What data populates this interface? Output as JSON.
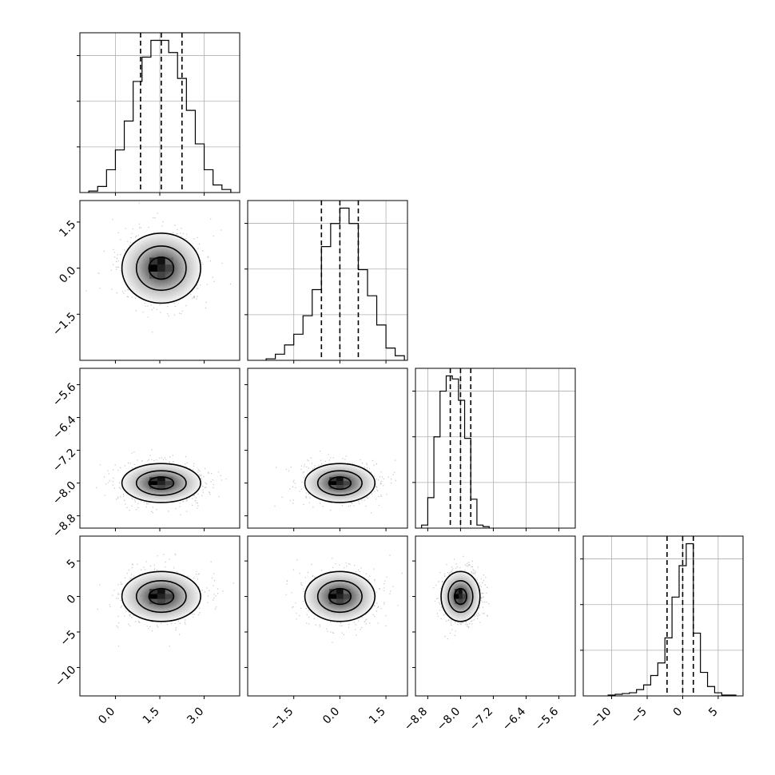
{
  "chart_data": {
    "type": "corner",
    "params": [
      {
        "range": [
          -1.2,
          4.2
        ],
        "ticks": [
          0.0,
          1.5,
          3.0
        ],
        "tick_labels": [
          "0.0",
          "1.5",
          "3.0"
        ],
        "quantiles": [
          0.85,
          1.55,
          2.25
        ],
        "hist": {
          "edges": [
            -0.9,
            -0.6,
            -0.3,
            0.0,
            0.3,
            0.6,
            0.9,
            1.2,
            1.5,
            1.8,
            2.1,
            2.4,
            2.7,
            3.0,
            3.3,
            3.6,
            3.9
          ],
          "counts": [
            0.01,
            0.04,
            0.15,
            0.28,
            0.47,
            0.73,
            0.89,
            1.0,
            1.0,
            0.92,
            0.75,
            0.54,
            0.32,
            0.15,
            0.05,
            0.02
          ]
        }
      },
      {
        "range": [
          -3.0,
          2.2
        ],
        "ticks": [
          -1.5,
          0.0,
          1.5
        ],
        "tick_labels": [
          "−1.5",
          "0.0",
          "1.5"
        ],
        "quantiles": [
          -0.6,
          0.0,
          0.6
        ],
        "hist": {
          "edges": [
            -2.4,
            -2.1,
            -1.8,
            -1.5,
            -1.2,
            -0.9,
            -0.6,
            -0.3,
            0.0,
            0.3,
            0.6,
            0.9,
            1.2,
            1.5,
            1.8,
            2.1
          ],
          "counts": [
            0.01,
            0.04,
            0.1,
            0.17,
            0.29,
            0.46,
            0.74,
            0.89,
            0.99,
            0.89,
            0.59,
            0.42,
            0.23,
            0.08,
            0.03
          ]
        }
      },
      {
        "range": [
          -9.1,
          -5.2
        ],
        "ticks": [
          -8.8,
          -8.0,
          -7.2,
          -6.4,
          -5.6
        ],
        "tick_labels": [
          "−8.8",
          "−8.0",
          "−7.2",
          "−6.4",
          "−5.6"
        ],
        "quantiles": [
          -8.25,
          -8.0,
          -7.75
        ],
        "hist": {
          "edges": [
            -8.95,
            -8.8,
            -8.65,
            -8.5,
            -8.35,
            -8.2,
            -8.05,
            -7.9,
            -7.75,
            -7.6,
            -7.45,
            -7.3
          ],
          "counts": [
            0.02,
            0.2,
            0.6,
            0.9,
            1.0,
            0.98,
            0.84,
            0.59,
            0.19,
            0.02,
            0.01
          ]
        }
      },
      {
        "range": [
          -14.0,
          8.5
        ],
        "ticks": [
          -10,
          -5,
          0,
          5
        ],
        "tick_labels": [
          "−10",
          "−5",
          "0",
          "5"
        ],
        "quantiles": [
          -2.2,
          0.0,
          1.5
        ],
        "hist": {
          "edges": [
            -10.5,
            -9.5,
            -8.5,
            -7.5,
            -6.5,
            -5.5,
            -4.5,
            -3.5,
            -2.5,
            -1.5,
            -0.5,
            0.5,
            1.5,
            2.5,
            3.5,
            4.5,
            5.5,
            6.5,
            7.5
          ],
          "counts": [
            0.005,
            0.01,
            0.015,
            0.02,
            0.04,
            0.07,
            0.13,
            0.21,
            0.37,
            0.63,
            0.83,
            0.97,
            0.4,
            0.15,
            0.06,
            0.02,
            0.005,
            0.005
          ]
        }
      }
    ],
    "correlation": "none visible; roughly independent parameters",
    "contour_levels": 3,
    "grid": true,
    "axis_labels": []
  }
}
